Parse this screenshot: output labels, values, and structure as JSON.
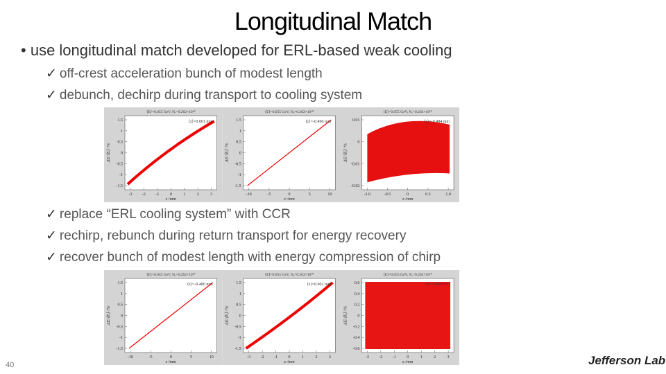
{
  "title": "Longitudinal Match",
  "bullet": "use longitudinal match developed for ERL-based weak cooling",
  "checks_top": [
    "off-crest acceleration bunch of modest length",
    "debunch, dechirp during transport to cooling system"
  ],
  "checks_bottom": [
    "replace “ERL cooling system” with CCR",
    "rechirp, rebunch during return transport for energy recovery",
    "recover bunch of modest length with energy compression of chirp"
  ],
  "panels": [
    {
      "header": "⟨E⟩=0.055 GeV, Nₑ=0.262×10¹⁰",
      "note": "⟨z⟩=0.001 mm",
      "xlabel": "z /mm",
      "ylabel": "ΔE/⟨E⟩ /%",
      "yticks": [
        "1.5",
        "1",
        "0.5",
        "0",
        "-0.5",
        "-1",
        "-1.5"
      ],
      "xticks": [
        "-3",
        "-2",
        "-1",
        "0",
        "1",
        "2",
        "3"
      ]
    },
    {
      "header": "⟨E⟩=0.055 GeV, Nₑ=0.262×10¹⁰",
      "note": "⟨z⟩=-0.496 mm",
      "xlabel": "z /mm",
      "ylabel": "ΔE/⟨E⟩ /%",
      "yticks": [
        "1.5",
        "1",
        "0.5",
        "0",
        "-0.5",
        "-1",
        "-1.5"
      ],
      "xticks": [
        "-10",
        "-5",
        "0",
        "5",
        "10"
      ]
    },
    {
      "header": "⟨E⟩=0.055 GeV, Nₑ=0.262×10¹⁰",
      "note": "⟨z⟩=-0.494 mm",
      "xlabel": "z /mm",
      "ylabel": "ΔE/⟨E⟩ /%",
      "yticks": [
        "0.01",
        "0",
        "-0.01",
        "-0.02"
      ],
      "xticks": [
        "-1.0",
        "-0.5",
        "0",
        "0.5",
        "1.0"
      ]
    },
    {
      "header": "⟨E⟩=0.055 GeV, Nₑ=0.262×10¹⁰",
      "note": "⟨z⟩=-0.480 mm",
      "xlabel": "z /mm",
      "ylabel": "ΔE/⟨E⟩ /%",
      "yticks": [
        "1.5",
        "1",
        "0.5",
        "0",
        "-0.5",
        "-1",
        "-1.5"
      ],
      "xticks": [
        "-10",
        "-5",
        "0",
        "5",
        "10"
      ]
    },
    {
      "header": "⟨E⟩=0.055 GeV, Nₑ=0.262×10¹⁰",
      "note": "⟨z⟩=0.001 mm",
      "xlabel": "z /mm",
      "ylabel": "ΔE/⟨E⟩ /%",
      "yticks": [
        "1.5",
        "1",
        "0.5",
        "0",
        "-0.5",
        "-1",
        "-1.5"
      ],
      "xticks": [
        "-3",
        "-2",
        "-1",
        "0",
        "1",
        "2",
        "3"
      ]
    },
    {
      "header": "⟨E⟩=0.055 GeV, Nₑ=0.262×10¹⁰",
      "note": "⟨z⟩=0.000 mm",
      "xlabel": "z /mm",
      "ylabel": "ΔE/⟨E⟩ /%",
      "yticks": [
        "0.6",
        "0.4",
        "0.2",
        "0",
        "-0.2",
        "-0.4",
        "-0.6"
      ],
      "xticks": [
        "-3",
        "-2",
        "-1",
        "0",
        "1",
        "2",
        "3"
      ]
    }
  ],
  "page_number": "40",
  "logo": "Jefferson Lab"
}
